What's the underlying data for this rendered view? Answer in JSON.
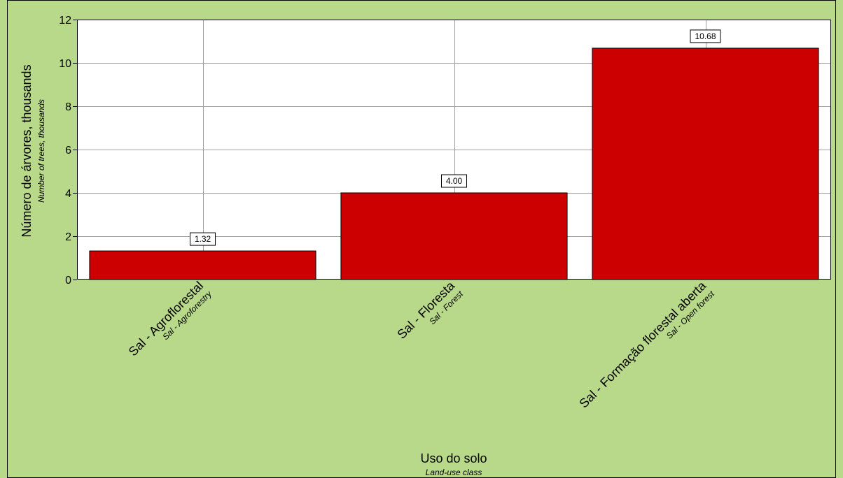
{
  "chart_data": {
    "type": "bar",
    "categories": [
      "Sal - Agroflorestal",
      "Sal - Floresta",
      "Sal - Formação florestal aberta"
    ],
    "categories_secondary": [
      "Sal - Agroforestry",
      "Sal - Forest",
      "Sal - Open forest"
    ],
    "values": [
      1.32,
      4.0,
      10.68
    ],
    "value_labels": [
      "1.32",
      "4.00",
      "10.68"
    ],
    "title": "",
    "xlabel": "Uso do solo",
    "xlabel_secondary": "Land-use class",
    "ylabel": "Número de árvores, thousands",
    "ylabel_secondary": "Number of trees, thousands",
    "ylim": [
      0,
      12
    ],
    "yticks": [
      0,
      2,
      4,
      6,
      8,
      10,
      12
    ],
    "grid": true,
    "legend": "none"
  },
  "colors": {
    "background": "#b9d98a",
    "plot_area": "#ffffff",
    "bar": "#cc0000",
    "grid": "#a0a0a0",
    "border": "#000000"
  }
}
